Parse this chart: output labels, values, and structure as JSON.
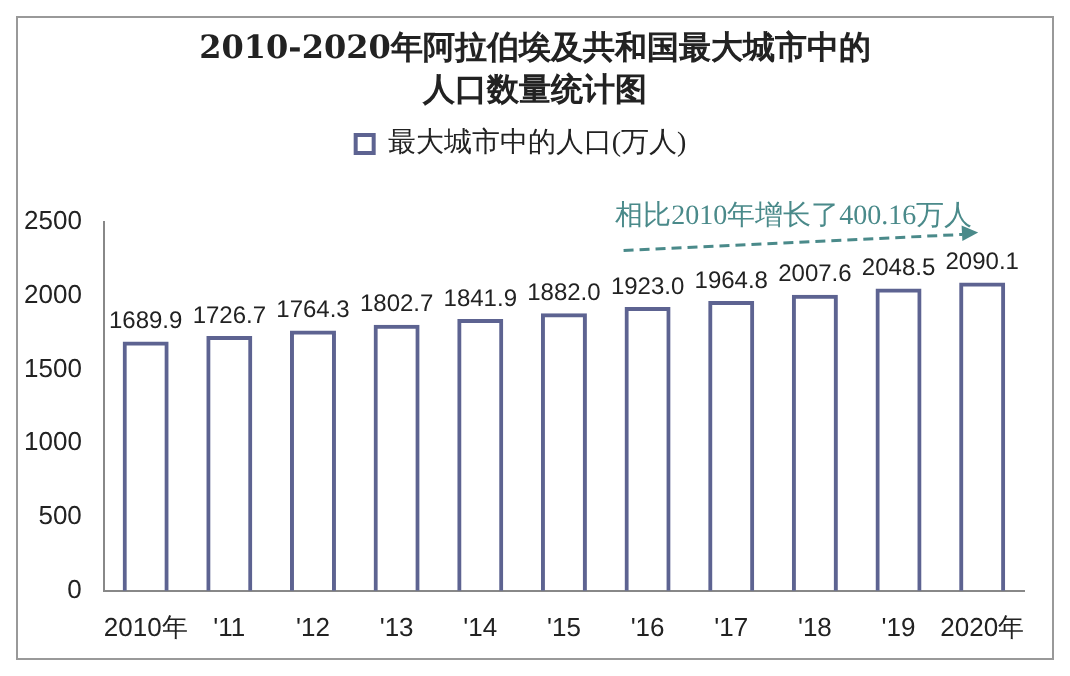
{
  "chart_data": {
    "type": "bar",
    "title": "2010-2020年阿拉伯埃及共和国最大城市中的人口数量统计图",
    "categories": [
      "2010年",
      "'11",
      "'12",
      "'13",
      "'14",
      "'15",
      "'16",
      "'17",
      "'18",
      "'19",
      "2020年"
    ],
    "series": [
      {
        "name": "最大城市中的人口(万人)",
        "color": "#5d6391",
        "values": [
          1689.9,
          1726.7,
          1764.3,
          1802.7,
          1841.9,
          1882.0,
          1923.0,
          1964.8,
          2007.6,
          2048.5,
          2090.1
        ],
        "value_labels": [
          "1689.9",
          "1726.7",
          "1764.3",
          "1802.7",
          "1841.9",
          "1882.0",
          "1923.0",
          "1964.8",
          "2007.6",
          "2048.5",
          "2090.1"
        ]
      }
    ],
    "ylim": [
      0,
      2500
    ],
    "yticks": [
      0,
      500,
      1000,
      1500,
      2000,
      2500
    ],
    "grid": false,
    "legend": "top",
    "annotations": [
      {
        "text": "相比2010年增长了400.16万人",
        "x": "2020年",
        "y": 2090.1
      }
    ]
  }
}
